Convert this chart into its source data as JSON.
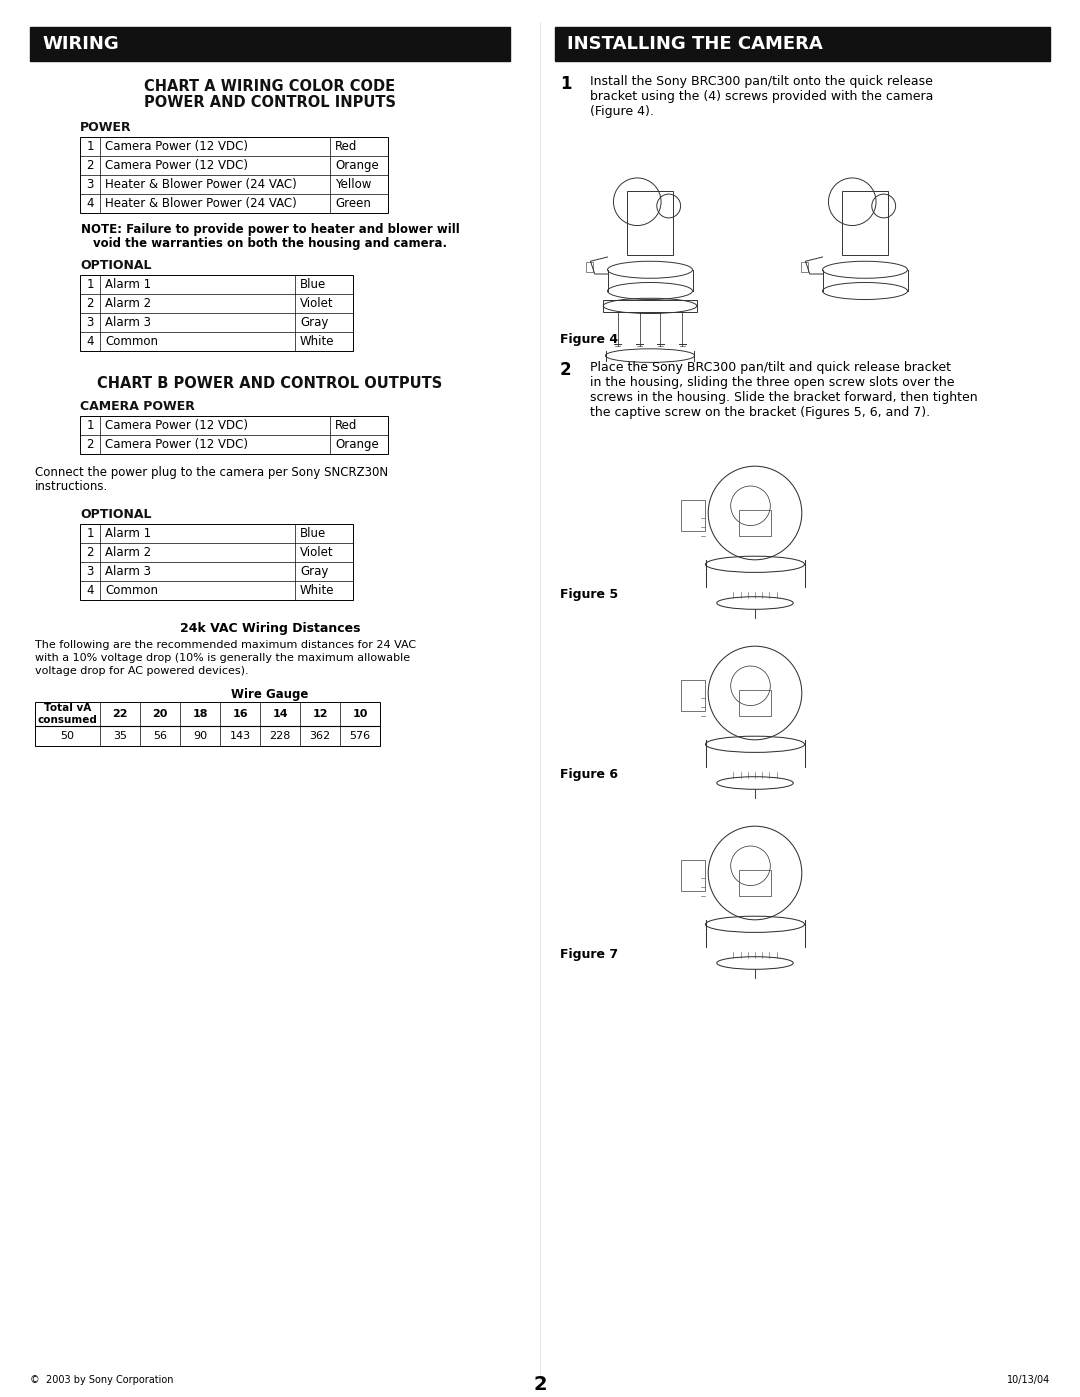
{
  "page_bg": "#ffffff",
  "header_bg": "#111111",
  "header_text_color": "#ffffff",
  "body_text_color": "#111111",
  "left_header": "WIRING",
  "right_header": "INSTALLING THE CAMERA",
  "chart_a_title1": "CHART A WIRING COLOR CODE",
  "chart_a_title2": "POWER AND CONTROL INPUTS",
  "power_label": "POWER",
  "power_table": [
    [
      "1",
      "Camera Power (12 VDC)",
      "Red"
    ],
    [
      "2",
      "Camera Power (12 VDC)",
      "Orange"
    ],
    [
      "3",
      "Heater & Blower Power (24 VAC)",
      "Yellow"
    ],
    [
      "4",
      "Heater & Blower Power (24 VAC)",
      "Green"
    ]
  ],
  "note_text": "NOTE: Failure to provide power to heater and blower will\nvoid the warranties on both the housing and camera.",
  "optional_label": "OPTIONAL",
  "optional_table_a": [
    [
      "1",
      "Alarm 1",
      "Blue"
    ],
    [
      "2",
      "Alarm 2",
      "Violet"
    ],
    [
      "3",
      "Alarm 3",
      "Gray"
    ],
    [
      "4",
      "Common",
      "White"
    ]
  ],
  "chart_b_title": "CHART B POWER AND CONTROL OUTPUTS",
  "camera_power_label": "CAMERA POWER",
  "camera_power_table": [
    [
      "1",
      "Camera Power (12 VDC)",
      "Red"
    ],
    [
      "2",
      "Camera Power (12 VDC)",
      "Orange"
    ]
  ],
  "connect_text": "Connect the power plug to the camera per Sony SNCRZ30N\ninstructions.",
  "optional_label2": "OPTIONAL",
  "optional_table_b": [
    [
      "1",
      "Alarm 1",
      "Blue"
    ],
    [
      "2",
      "Alarm 2",
      "Violet"
    ],
    [
      "3",
      "Alarm 3",
      "Gray"
    ],
    [
      "4",
      "Common",
      "White"
    ]
  ],
  "vac_title": "24k VAC Wiring Distances",
  "vac_text": "The following are the recommended maximum distances for 24 VAC\nwith a 10% voltage drop (10% is generally the maximum allowable\nvoltage drop for AC powered devices).",
  "wire_gauge_label": "Wire Gauge",
  "wire_gauge_headers": [
    "Total vA\nconsumed",
    "22",
    "20",
    "18",
    "16",
    "14",
    "12",
    "10"
  ],
  "wire_gauge_data": [
    "50",
    "35",
    "56",
    "90",
    "143",
    "228",
    "362",
    "576"
  ],
  "step1_num": "1",
  "step1_text": "Install the Sony BRC300 pan/tilt onto the quick release\nbracket using the (4) screws provided with the camera\n(Figure 4).",
  "figure4_label": "Figure 4",
  "step2_num": "2",
  "step2_text": "Place the Sony BRC300 pan/tilt and quick release bracket\nin the housing, sliding the three open screw slots over the\nscrews in the housing. Slide the bracket forward, then tighten\nthe captive screw on the bracket (Figures 5, 6, and 7).",
  "figure5_label": "Figure 5",
  "figure6_label": "Figure 6",
  "figure7_label": "Figure 7",
  "footer_left": "©  2003 by Sony Corporation",
  "footer_center": "2",
  "footer_right": "10/13/04"
}
